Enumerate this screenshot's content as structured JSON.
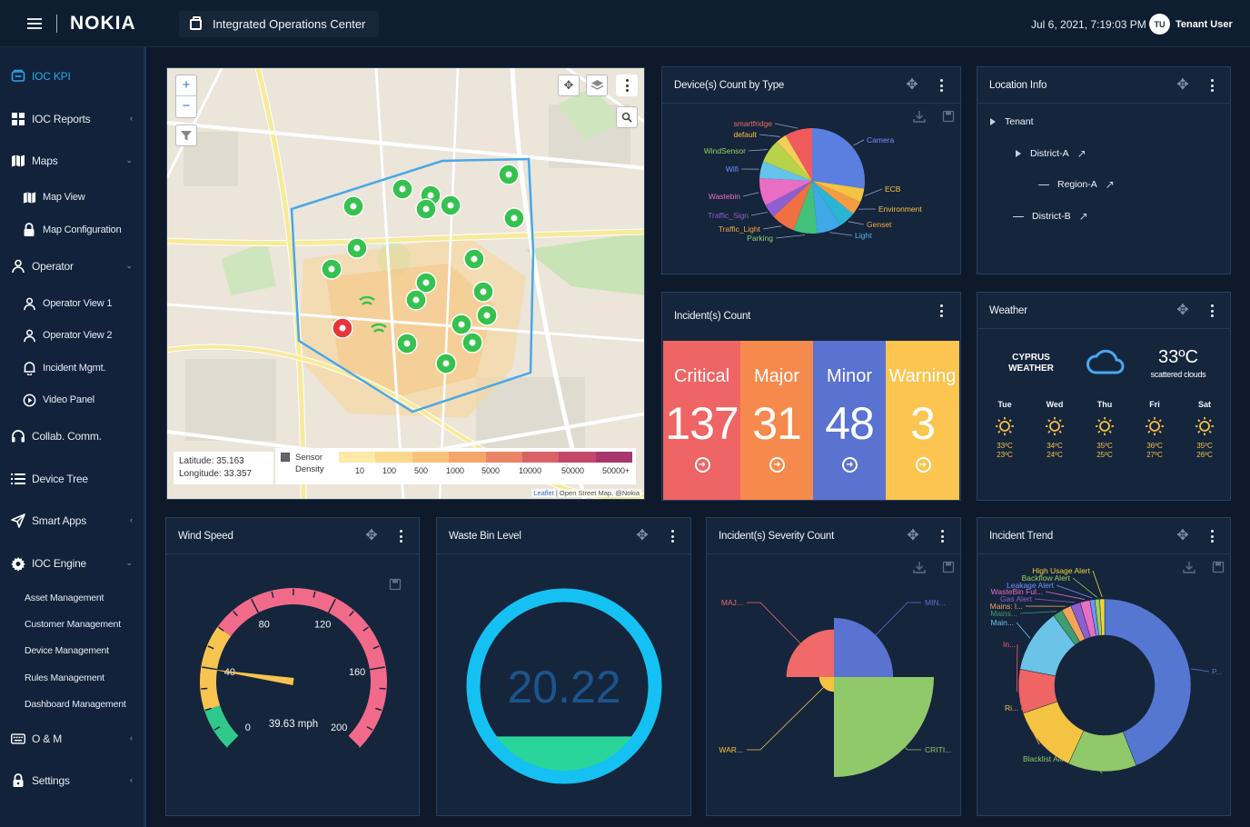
{
  "header": {
    "brand": "NOKIA",
    "app_title": "Integrated Operations Center",
    "datetime": "Jul 6, 2021, 7:19:03 PM",
    "user_initials": "TU",
    "user_name": "Tenant User"
  },
  "sidebar": {
    "items": [
      {
        "label": "IOC KPI",
        "icon": "monitor-icon",
        "active": true
      },
      {
        "label": "IOC Reports",
        "icon": "grid-icon",
        "chevron": "‹"
      },
      {
        "label": "Maps",
        "icon": "map-icon",
        "chevron": "⌄"
      },
      {
        "label": "Map View",
        "icon": "map-icon"
      },
      {
        "label": "Map Configuration",
        "icon": "lock-icon"
      },
      {
        "label": "Operator",
        "icon": "person-icon",
        "chevron": "⌄"
      },
      {
        "label": "Operator View 1",
        "icon": "person-icon"
      },
      {
        "label": "Operator View 2",
        "icon": "person-icon"
      },
      {
        "label": "Incident Mgmt.",
        "icon": "bell-icon"
      },
      {
        "label": "Video Panel",
        "icon": "play-icon"
      },
      {
        "label": "Collab. Comm.",
        "icon": "headset-icon"
      },
      {
        "label": "Device Tree",
        "icon": "list-icon"
      },
      {
        "label": "Smart Apps",
        "icon": "send-icon",
        "chevron": "‹"
      },
      {
        "label": "IOC Engine",
        "icon": "gear-icon",
        "chevron": "⌄"
      },
      {
        "label": "Asset Management"
      },
      {
        "label": "Customer Management"
      },
      {
        "label": "Device Management"
      },
      {
        "label": "Rules Management"
      },
      {
        "label": "Dashboard Management"
      },
      {
        "label": "O & M",
        "icon": "keyboard-icon",
        "chevron": "‹"
      },
      {
        "label": "Settings",
        "icon": "lock-icon",
        "chevron": "‹"
      }
    ]
  },
  "map": {
    "zoom_in": "+",
    "zoom_out": "−",
    "latitude": "Latitude: 35.163",
    "longitude": "Longitude: 33.357",
    "legend_label_1": "Sensor",
    "legend_label_2": "Density",
    "legend_ticks": [
      "10",
      "100",
      "500",
      "1000",
      "5000",
      "10000",
      "50000",
      "50000+"
    ],
    "legend_colors": [
      "#fde9a8",
      "#fcd98c",
      "#f9c27a",
      "#f4a66b",
      "#ea8567",
      "#d96467",
      "#c2486a",
      "#a9366d"
    ],
    "attribution_link": "Leaflet",
    "attribution_text": "| Open Street Map, @Nokia"
  },
  "device_count": {
    "title": "Device(s) Count by Type",
    "chart_data": {
      "type": "pie",
      "categories": [
        "Camera",
        "ECB",
        "Environment",
        "Genset",
        "Light",
        "Parking",
        "Traffic_Light",
        "Traffic_Sign",
        "Wastebin",
        "Wifi",
        "WindSensor",
        "default",
        "smartfridge"
      ],
      "values": [
        26,
        4,
        4,
        5,
        7,
        7,
        7,
        4,
        8,
        5,
        7,
        3,
        8
      ],
      "colors": [
        "#5b7fe0",
        "#f5c342",
        "#f39c43",
        "#2ab5d4",
        "#3fa9e8",
        "#43c17a",
        "#f17043",
        "#8e5fd0",
        "#e86ec4",
        "#64c3e8",
        "#b8d24a",
        "#f4ce56",
        "#f05a5a"
      ],
      "label_colors": [
        "#6e92ff",
        "#f5c342",
        "#f5c342",
        "#f5a742",
        "#57b2f0",
        "#8bd06a",
        "#f5a742",
        "#8e5fd0",
        "#e86ec4",
        "#6e92ff",
        "#9bd15a",
        "#f5c342",
        "#f06a6a"
      ]
    }
  },
  "location": {
    "title": "Location Info",
    "tenant": "Tenant",
    "district_a": "District-A",
    "region_a": "Region-A",
    "district_b": "District-B"
  },
  "incident_count": {
    "title": "Incident(s) Count",
    "items": [
      {
        "label": "Critical",
        "value": "137",
        "color": "#ef6464"
      },
      {
        "label": "Major",
        "value": "31",
        "color": "#f58a4c"
      },
      {
        "label": "Minor",
        "value": "48",
        "color": "#5a72d0"
      },
      {
        "label": "Warning",
        "value": "3",
        "color": "#fbc54f"
      }
    ]
  },
  "weather": {
    "title": "Weather",
    "place_line1": "CYPRUS",
    "place_line2": "WEATHER",
    "temp": "33ºC",
    "condition": "scattered clouds",
    "days": [
      {
        "day": "Tue",
        "hi": "33ºC",
        "lo": "23ºC"
      },
      {
        "day": "Wed",
        "hi": "34ºC",
        "lo": "24ºC"
      },
      {
        "day": "Thu",
        "hi": "35ºC",
        "lo": "25ºC"
      },
      {
        "day": "Fri",
        "hi": "36ºC",
        "lo": "27ºC"
      },
      {
        "day": "Sat",
        "hi": "35ºC",
        "lo": "26ºC"
      }
    ]
  },
  "wind": {
    "title": "Wind Speed",
    "chart_data": {
      "type": "gauge",
      "value": 39.63,
      "min": 0,
      "max": 200,
      "tick_labels": [
        "0",
        "40",
        "80",
        "120",
        "160",
        "200"
      ],
      "readout": "39.63 mph",
      "bands": [
        {
          "from": 0,
          "to": 20,
          "color": "#2fc98c"
        },
        {
          "from": 20,
          "to": 60,
          "color": "#f7c450"
        },
        {
          "from": 60,
          "to": 200,
          "color": "#f26a8a"
        }
      ]
    }
  },
  "waste": {
    "title": "Waste Bin Level",
    "value": "20.22",
    "level_percent": 20.22
  },
  "severity": {
    "title": "Incident(s) Severity Count",
    "chart_data": {
      "type": "pie",
      "categories": [
        "MAJ...",
        "MIN...",
        "CRITI...",
        "WAR..."
      ],
      "values": [
        31,
        48,
        137,
        3
      ],
      "colors": [
        "#f06a6a",
        "#5a72d0",
        "#8fc96a",
        "#f5c342"
      ]
    }
  },
  "trend": {
    "title": "Incident Trend",
    "chart_data": {
      "type": "pie",
      "categories": [
        "P...",
        "Blacklist Alert",
        "Ri...",
        "In...",
        "Main...",
        "Mains...",
        "Mains: l...",
        "Gas Alert",
        "WasteBin Ful...",
        "Leakage Alert",
        "Backflow Alert",
        "High Usage Alert"
      ],
      "values": [
        48,
        14,
        14,
        9,
        13,
        2,
        2,
        2,
        2,
        1,
        1,
        1
      ],
      "colors": [
        "#5577d2",
        "#90c96a",
        "#f5c342",
        "#ef6464",
        "#6bc3e8",
        "#3f9e71",
        "#f3a45b",
        "#8e5fd0",
        "#e86ec4",
        "#6e92ff",
        "#9bd15a",
        "#f5d43a"
      ]
    }
  }
}
